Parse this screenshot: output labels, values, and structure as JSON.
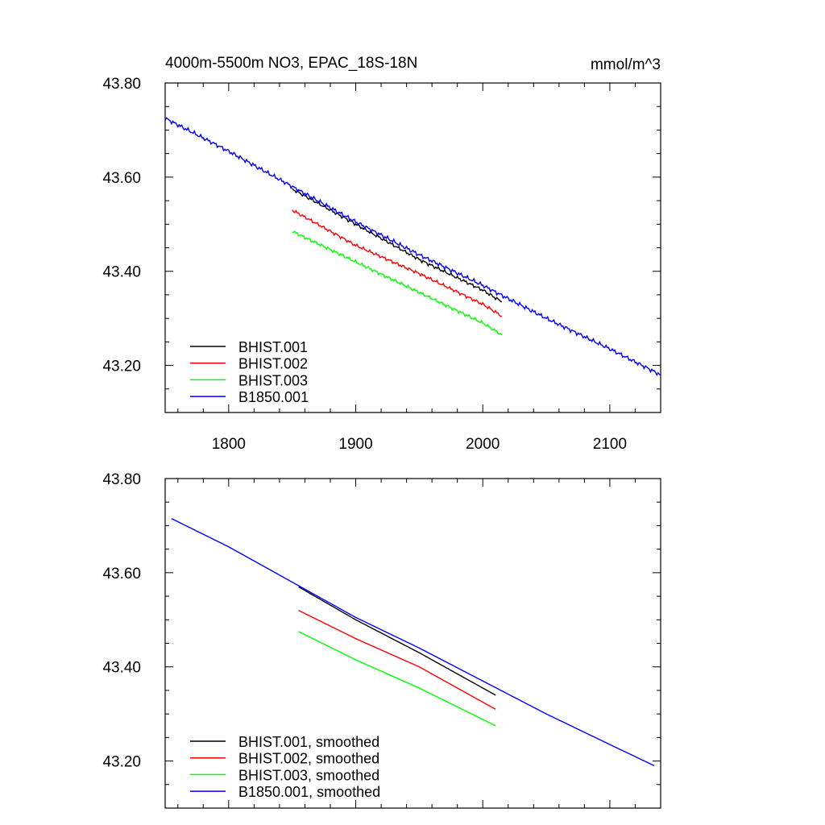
{
  "chart_data": [
    {
      "type": "line",
      "title": "4000m-5500m NO3, EPAC_18S-18N",
      "units": "mmol/m^3",
      "xlabel": "",
      "ylabel": "",
      "xlim": [
        1750,
        2140
      ],
      "ylim": [
        43.1,
        43.8
      ],
      "xticks": [
        1800,
        1900,
        2000,
        2100
      ],
      "xtick_labels": [
        "1800",
        "1900",
        "2000",
        "2100"
      ],
      "yticks": [
        43.2,
        43.4,
        43.6,
        43.8
      ],
      "ytick_labels": [
        "43.20",
        "43.40",
        "43.60",
        "43.80"
      ],
      "grid": false,
      "legend_position": "bottom-left",
      "series": [
        {
          "name": "BHIST.001",
          "color": "#000000",
          "noise": 0.004,
          "x": [
            1850,
            1900,
            1950,
            2000,
            2015
          ],
          "y": [
            43.575,
            43.5,
            43.425,
            43.36,
            43.335
          ]
        },
        {
          "name": "BHIST.002",
          "color": "#ff0000",
          "noise": 0.004,
          "x": [
            1850,
            1900,
            1950,
            2000,
            2015
          ],
          "y": [
            43.53,
            43.455,
            43.395,
            43.33,
            43.305
          ]
        },
        {
          "name": "BHIST.003",
          "color": "#00ff00",
          "noise": 0.004,
          "x": [
            1850,
            1900,
            1950,
            2000,
            2015
          ],
          "y": [
            43.485,
            43.42,
            43.355,
            43.29,
            43.265
          ]
        },
        {
          "name": "B1850.001",
          "color": "#0000ff",
          "noise": 0.005,
          "x": [
            1750,
            1800,
            1850,
            1900,
            1950,
            2000,
            2050,
            2100,
            2140
          ],
          "y": [
            43.725,
            43.655,
            43.58,
            43.505,
            43.435,
            43.37,
            43.3,
            43.235,
            43.18
          ]
        }
      ]
    },
    {
      "type": "line",
      "xlim": [
        1750,
        2140
      ],
      "ylim": [
        43.1,
        43.8
      ],
      "xticks": [
        1800,
        1900,
        2000,
        2100
      ],
      "yticks": [
        43.2,
        43.4,
        43.6,
        43.8
      ],
      "ytick_labels": [
        "43.20",
        "43.40",
        "43.60",
        "43.80"
      ],
      "grid": false,
      "legend_position": "bottom-left",
      "series": [
        {
          "name": "BHIST.001, smoothed",
          "color": "#000000",
          "noise": 0,
          "x": [
            1855,
            1900,
            1950,
            2010
          ],
          "y": [
            43.57,
            43.5,
            43.43,
            43.34
          ]
        },
        {
          "name": "BHIST.002, smoothed",
          "color": "#ff0000",
          "noise": 0,
          "x": [
            1855,
            1900,
            1950,
            2010
          ],
          "y": [
            43.52,
            43.46,
            43.4,
            43.31
          ]
        },
        {
          "name": "BHIST.003, smoothed",
          "color": "#00ff00",
          "noise": 0,
          "x": [
            1855,
            1900,
            1950,
            2010
          ],
          "y": [
            43.475,
            43.415,
            43.355,
            43.275
          ]
        },
        {
          "name": "B1850.001, smoothed",
          "color": "#0000ff",
          "noise": 0,
          "x": [
            1755,
            1800,
            1850,
            1900,
            1950,
            2000,
            2050,
            2100,
            2135
          ],
          "y": [
            43.715,
            43.655,
            43.58,
            43.505,
            43.44,
            43.37,
            43.3,
            43.235,
            43.19
          ]
        }
      ]
    }
  ]
}
